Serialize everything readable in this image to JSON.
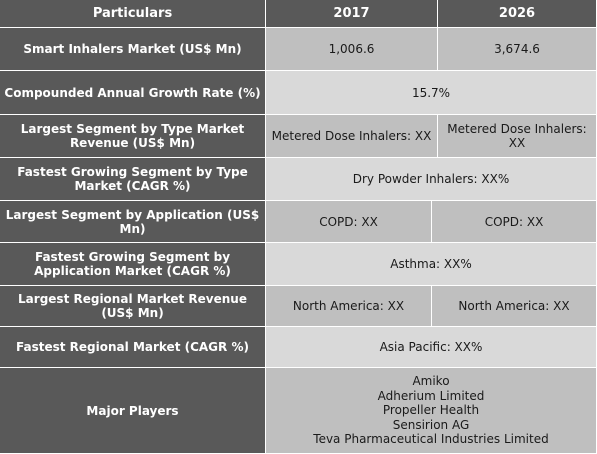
{
  "header": {
    "particulars": "Particulars",
    "y1": "2017",
    "y2": "2026"
  },
  "rows": {
    "market": {
      "label": "Smart Inhalers Market (US$ Mn)",
      "v2017": "1,006.6",
      "v2026": "3,674.6"
    },
    "cagr": {
      "label": "Compounded Annual Growth Rate (%)",
      "value": "15.7%"
    },
    "type_rev": {
      "label": "Largest Segment by Type Market Revenue (US$ Mn)",
      "v2017": "Metered Dose Inhalers: XX",
      "v2026": "Metered Dose Inhalers: XX"
    },
    "type_cagr": {
      "label": "Fastest Growing Segment by Type Market (CAGR %)",
      "value": "Dry Powder Inhalers:  XX%"
    },
    "app_rev": {
      "label": "Largest Segment by Application (US$ Mn)",
      "v2017": "COPD: XX",
      "v2026": "COPD:  XX"
    },
    "app_cagr": {
      "label": "Fastest Growing Segment by Application Market (CAGR %)",
      "value": "Asthma:  XX%"
    },
    "region_rev": {
      "label": "Largest Regional Market Revenue (US$ Mn)",
      "v2017": "North America: XX",
      "v2026": "North America: XX"
    },
    "region_cagr": {
      "label": "Fastest Regional Market (CAGR %)",
      "value": "Asia Pacific: XX%"
    },
    "players": {
      "label": "Major Players",
      "items": [
        "Amiko",
        "Adherium Limited",
        "Propeller Health",
        "Sensirion AG",
        "Teva Pharmaceutical Industries Limited"
      ]
    }
  }
}
